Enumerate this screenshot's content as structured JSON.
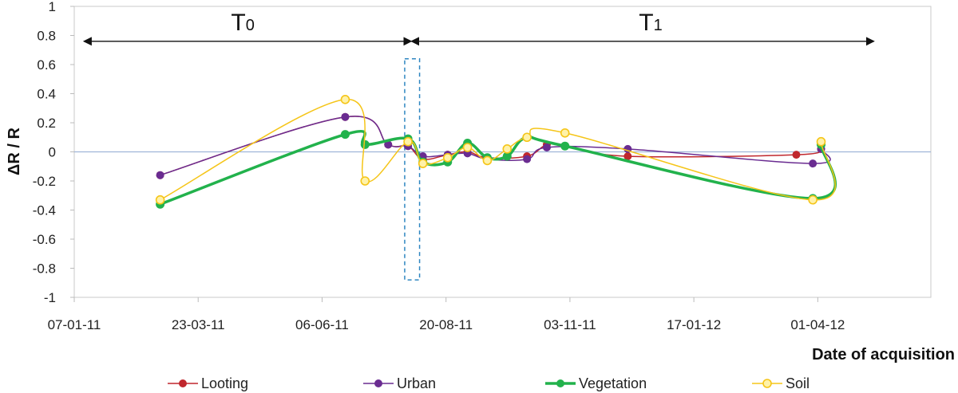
{
  "chart_data": {
    "type": "line",
    "title": "",
    "xlabel": "Date of acquisition",
    "ylabel": "ΔR / R",
    "ylim": [
      -1,
      1
    ],
    "yticks": [
      "1",
      "0.8",
      "0.6",
      "0.4",
      "0.2",
      "0",
      "-0.2",
      "-0.4",
      "-0.6",
      "-0.8",
      "-1"
    ],
    "xticks": [
      "07-01-11",
      "23-03-11",
      "06-06-11",
      "20-08-11",
      "03-11-11",
      "17-01-12",
      "01-04-12"
    ],
    "grid": false,
    "legend_position": "bottom",
    "annotations": {
      "period_t0": {
        "label": "T",
        "subscript": "0",
        "from": "07-01-11",
        "to": "30-07-11"
      },
      "period_t1": {
        "label": "T",
        "subscript": "1",
        "from": "30-07-11",
        "to": "05-05-12"
      },
      "highlight_box": {
        "x_from": "26-07-11",
        "x_to": "04-08-11",
        "y_from": -0.88,
        "y_to": 0.64,
        "style": "dashed"
      }
    },
    "x_dates": [
      "28-02-11",
      "20-06-11",
      "02-07-11",
      "16-07-11",
      "28-07-11",
      "06-08-11",
      "21-08-11",
      "02-09-11",
      "14-09-11",
      "26-09-11",
      "08-10-11",
      "20-10-11",
      "31-10-11",
      "08-12-11",
      "19-03-12",
      "29-03-12",
      "03-04-12"
    ],
    "series": [
      {
        "name": "Looting",
        "color": "#c0272d",
        "marker": "filled",
        "points": [
          [
            0,
            -0.16
          ],
          [
            1,
            0.24
          ],
          [
            3,
            0.05
          ],
          [
            4,
            0.04
          ],
          [
            5,
            -0.05
          ],
          [
            6,
            -0.02
          ],
          [
            7,
            0.0
          ],
          [
            8,
            -0.04
          ],
          [
            10,
            -0.03
          ],
          [
            11,
            0.05
          ],
          [
            12,
            0.04
          ],
          [
            13,
            -0.03
          ],
          [
            14,
            -0.02
          ],
          [
            16,
            0.02
          ]
        ]
      },
      {
        "name": "Urban",
        "color": "#6a2c91",
        "marker": "filled",
        "points": [
          [
            0,
            -0.16
          ],
          [
            1,
            0.24
          ],
          [
            3,
            0.05
          ],
          [
            4,
            0.04
          ],
          [
            5,
            -0.03
          ],
          [
            6,
            -0.02
          ],
          [
            7,
            -0.01
          ],
          [
            8,
            -0.05
          ],
          [
            10,
            -0.05
          ],
          [
            11,
            0.03
          ],
          [
            13,
            0.02
          ],
          [
            15,
            -0.08
          ],
          [
            16,
            0.02
          ]
        ]
      },
      {
        "name": "Vegetation",
        "color": "#22b24c",
        "marker": "filled",
        "points": [
          [
            0,
            -0.36
          ],
          [
            1,
            0.12
          ],
          [
            2,
            0.05
          ],
          [
            4,
            0.09
          ],
          [
            5,
            -0.07
          ],
          [
            6,
            -0.07
          ],
          [
            7,
            0.06
          ],
          [
            8,
            -0.04
          ],
          [
            9,
            -0.03
          ],
          [
            10,
            0.1
          ],
          [
            12,
            0.04
          ],
          [
            15,
            -0.32
          ],
          [
            16,
            0.05
          ]
        ]
      },
      {
        "name": "Soil",
        "color": "#f5c518",
        "marker": "hollow",
        "points": [
          [
            0,
            -0.33
          ],
          [
            1,
            0.36
          ],
          [
            2,
            -0.2
          ],
          [
            4,
            0.07
          ],
          [
            5,
            -0.08
          ],
          [
            6,
            -0.04
          ],
          [
            7,
            0.03
          ],
          [
            8,
            -0.06
          ],
          [
            9,
            0.02
          ],
          [
            10,
            0.1
          ],
          [
            12,
            0.13
          ],
          [
            15,
            -0.33
          ],
          [
            16,
            0.07
          ]
        ]
      }
    ]
  }
}
